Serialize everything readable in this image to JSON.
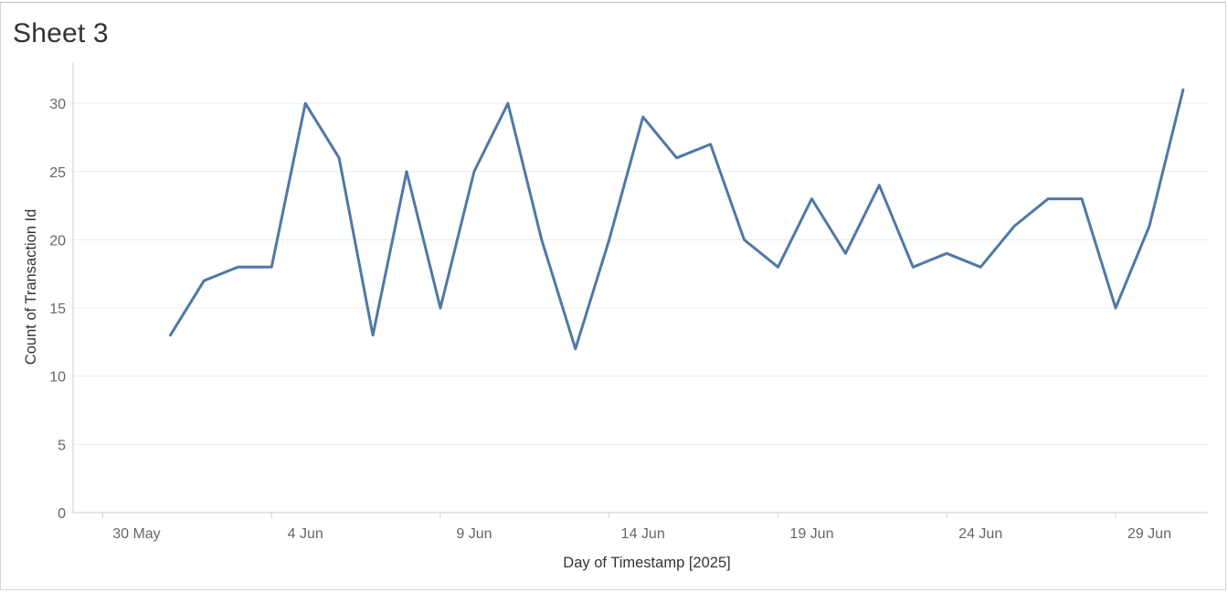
{
  "sheet": {
    "title": "Sheet 3"
  },
  "colors": {
    "line": "#4e79a7",
    "grid": "#ececec",
    "axis": "#cfcfcf"
  },
  "chart_data": {
    "type": "line",
    "xlabel": "Day of Timestamp [2025]",
    "ylabel": "Count of Transaction Id",
    "ylim": [
      0,
      31
    ],
    "xlim": [
      "2025-05-29",
      "2025-07-04"
    ],
    "grid": true,
    "y_ticks": [
      {
        "value": 0,
        "label": "0"
      },
      {
        "value": 5,
        "label": "5"
      },
      {
        "value": 10,
        "label": "10"
      },
      {
        "value": 15,
        "label": "15"
      },
      {
        "value": 20,
        "label": "20"
      },
      {
        "value": 25,
        "label": "25"
      },
      {
        "value": 30,
        "label": "30"
      }
    ],
    "x_ticks": [
      {
        "date": "2025-05-30",
        "label": "30 May"
      },
      {
        "date": "2025-06-04",
        "label": "4 Jun"
      },
      {
        "date": "2025-06-09",
        "label": "9 Jun"
      },
      {
        "date": "2025-06-14",
        "label": "14 Jun"
      },
      {
        "date": "2025-06-19",
        "label": "19 Jun"
      },
      {
        "date": "2025-06-24",
        "label": "24 Jun"
      },
      {
        "date": "2025-06-29",
        "label": "29 Jun"
      }
    ],
    "series": [
      {
        "points": [
          {
            "x": "2025-06-01",
            "y": 13
          },
          {
            "x": "2025-06-02",
            "y": 17
          },
          {
            "x": "2025-06-03",
            "y": 18
          },
          {
            "x": "2025-06-04",
            "y": 18
          },
          {
            "x": "2025-06-05",
            "y": 30
          },
          {
            "x": "2025-06-06",
            "y": 26
          },
          {
            "x": "2025-06-07",
            "y": 13
          },
          {
            "x": "2025-06-08",
            "y": 25
          },
          {
            "x": "2025-06-09",
            "y": 15
          },
          {
            "x": "2025-06-10",
            "y": 25
          },
          {
            "x": "2025-06-11",
            "y": 30
          },
          {
            "x": "2025-06-12",
            "y": 20
          },
          {
            "x": "2025-06-13",
            "y": 12
          },
          {
            "x": "2025-06-14",
            "y": 20
          },
          {
            "x": "2025-06-15",
            "y": 29
          },
          {
            "x": "2025-06-16",
            "y": 26
          },
          {
            "x": "2025-06-17",
            "y": 27
          },
          {
            "x": "2025-06-18",
            "y": 20
          },
          {
            "x": "2025-06-19",
            "y": 18
          },
          {
            "x": "2025-06-20",
            "y": 23
          },
          {
            "x": "2025-06-21",
            "y": 19
          },
          {
            "x": "2025-06-22",
            "y": 24
          },
          {
            "x": "2025-06-23",
            "y": 18
          },
          {
            "x": "2025-06-24",
            "y": 19
          },
          {
            "x": "2025-06-25",
            "y": 18
          },
          {
            "x": "2025-06-26",
            "y": 21
          },
          {
            "x": "2025-06-27",
            "y": 23
          },
          {
            "x": "2025-06-28",
            "y": 23
          },
          {
            "x": "2025-06-29",
            "y": 15
          },
          {
            "x": "2025-06-30",
            "y": 21
          },
          {
            "x": "2025-07-01",
            "y": 31
          }
        ]
      }
    ]
  }
}
